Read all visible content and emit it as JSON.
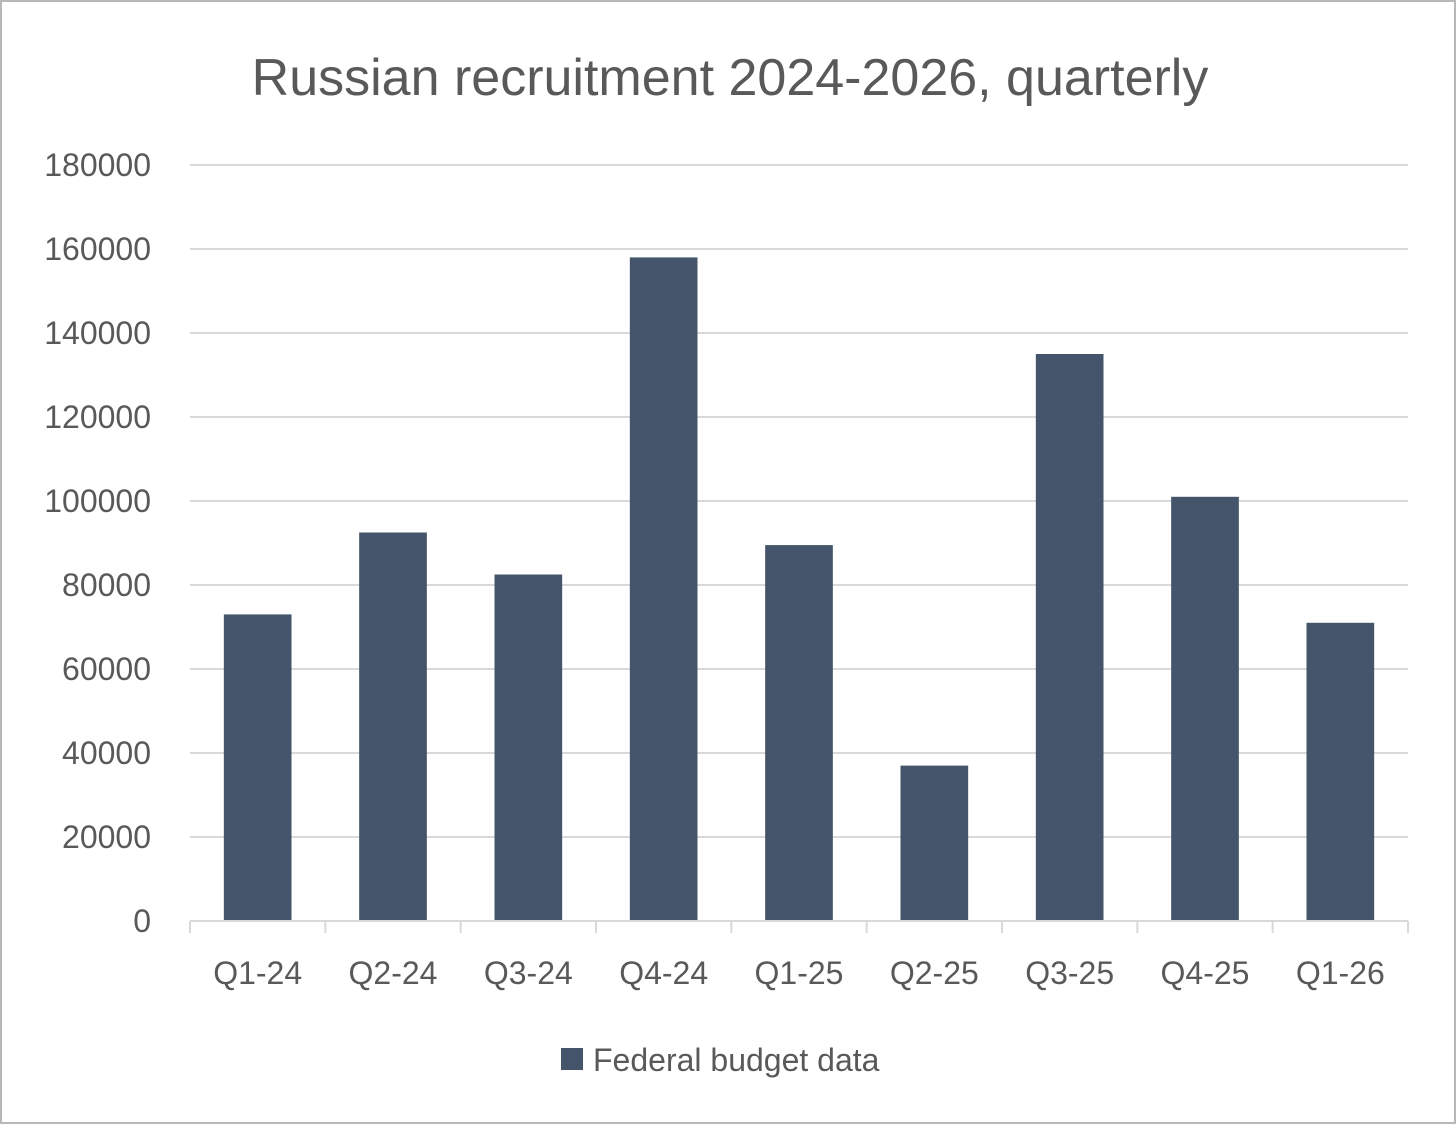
{
  "chart_data": {
    "type": "bar",
    "title": "Russian recruitment 2024-2026, quarterly",
    "xlabel": "",
    "ylabel": "",
    "categories": [
      "Q1-24",
      "Q2-24",
      "Q3-24",
      "Q4-24",
      "Q1-25",
      "Q2-25",
      "Q3-25",
      "Q4-25",
      "Q1-26"
    ],
    "series": [
      {
        "name": "Federal budget data",
        "color": "#44546a",
        "values": [
          73000,
          92500,
          82500,
          158000,
          89500,
          37000,
          135000,
          101000,
          71000
        ]
      }
    ],
    "ylim": [
      0,
      180000
    ],
    "yticks": [
      0,
      20000,
      40000,
      60000,
      80000,
      100000,
      120000,
      140000,
      160000,
      180000
    ],
    "ytick_labels": [
      "0",
      "20000",
      "40000",
      "60000",
      "80000",
      "100000",
      "120000",
      "140000",
      "160000",
      "180000"
    ],
    "grid": true,
    "legend_position": "bottom"
  }
}
